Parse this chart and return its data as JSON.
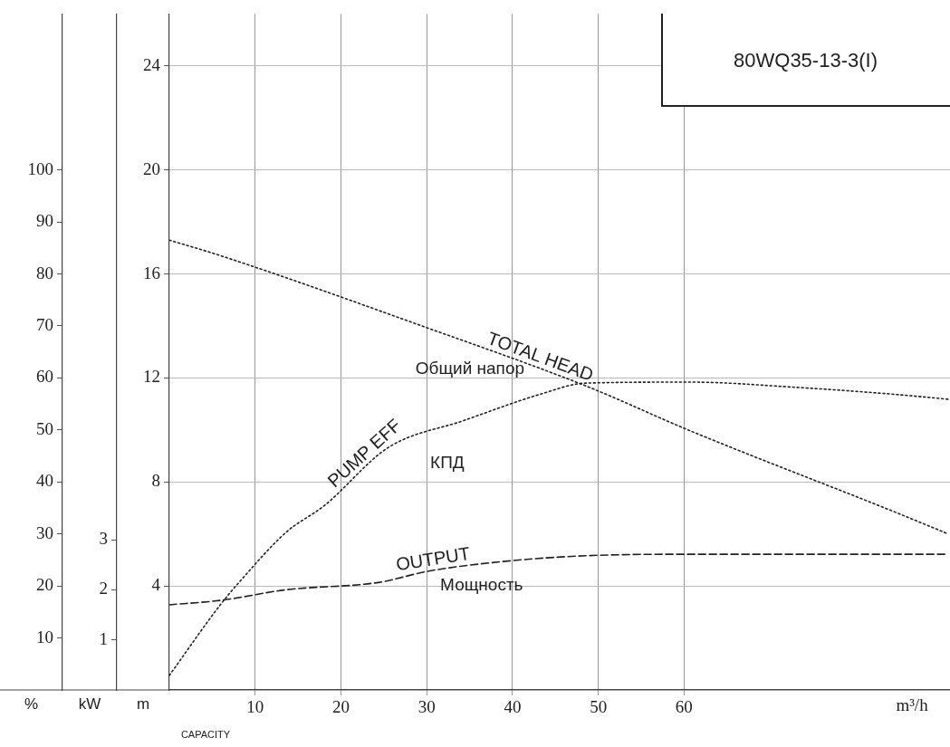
{
  "chart_data": {
    "type": "line",
    "title": "80WQ35-13-3(I)",
    "xlabel": "m³/h",
    "ylabel": "m",
    "y2label": "kW",
    "y3label": "%",
    "xlim": [
      0,
      91
    ],
    "xticks": [
      10,
      20,
      30,
      40,
      50,
      60
    ],
    "ylim": [
      0,
      26
    ],
    "yticks": [
      4,
      8,
      12,
      16,
      20,
      24
    ],
    "y2lim": [
      0,
      13.5
    ],
    "y2ticks": [
      1,
      2,
      3
    ],
    "y3lim": [
      0,
      130
    ],
    "y3ticks": [
      10,
      20,
      30,
      40,
      50,
      60,
      70,
      80,
      90,
      100
    ],
    "grid": true,
    "legend": false,
    "marker": "none",
    "series": [
      {
        "name": "TOTAL HEAD",
        "color": "#222222",
        "line_style": "dotted",
        "x": [
          0,
          6.0,
          30.3,
          48.5,
          60.7,
          84.9,
          90.8
        ],
        "values": [
          17.3,
          16.7,
          13.9,
          11.7,
          9.97,
          6.8,
          6.0
        ]
      },
      {
        "name": "PUMP EFF",
        "color": "#222222",
        "line_style": "dotted",
        "axis": "y3",
        "x": [
          0,
          6.0,
          8.4,
          13.6,
          18.1,
          25.5,
          34.3,
          43.5,
          48.5,
          60.7,
          73.0,
          84.9,
          90.8
        ],
        "values": [
          2.8,
          16.5,
          21.2,
          30.3,
          35.5,
          46.6,
          51.8,
          57.0,
          59.0,
          59.2,
          58.2,
          56.8,
          55.9
        ]
      },
      {
        "name": "OUTPUT",
        "color": "#222222",
        "line_style": "dashed",
        "axis": "y2",
        "x": [
          0,
          6.0,
          13.6,
          24.5,
          30.1,
          39.2,
          48.5,
          60.7,
          90.8
        ],
        "values": [
          1.7,
          1.79,
          2.0,
          2.15,
          2.37,
          2.57,
          2.68,
          2.71,
          2.71
        ]
      }
    ],
    "annotations": [
      "Общий напор",
      "КПД",
      "Мощность",
      "CAPACITY"
    ]
  }
}
